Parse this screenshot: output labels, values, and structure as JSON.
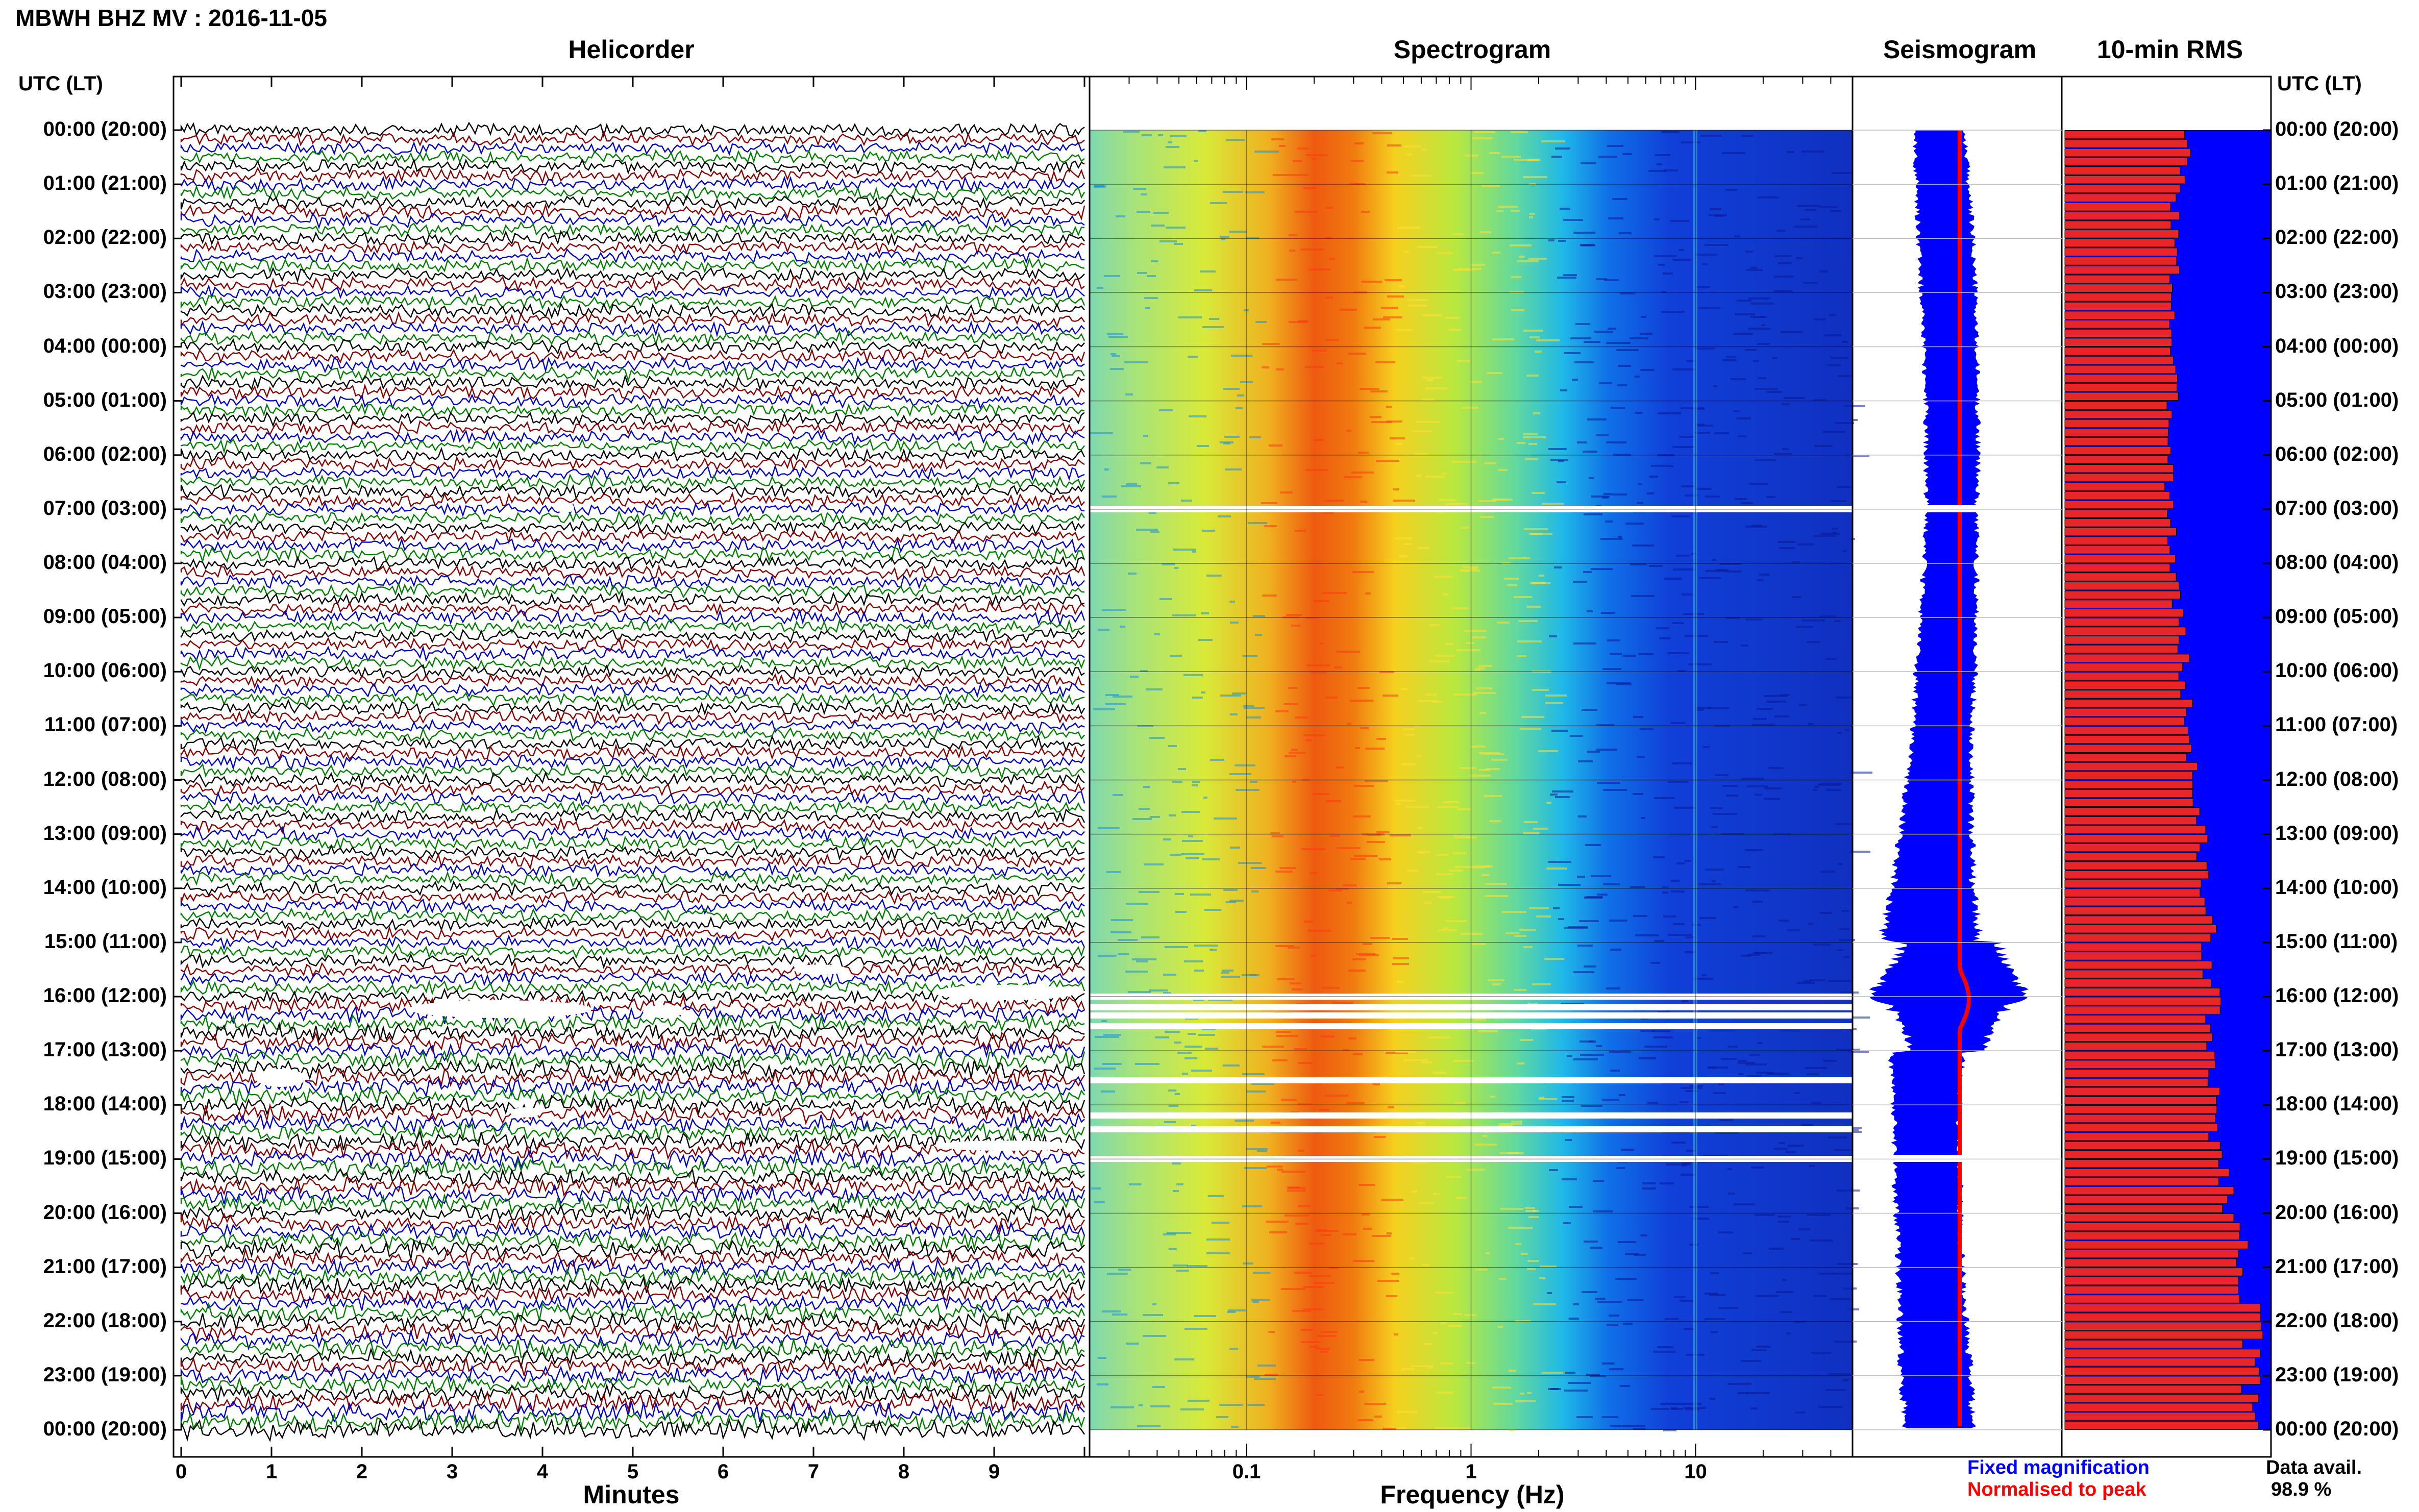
{
  "title": "MBWH BHZ MV : 2016-11-05",
  "panels": {
    "helicorder": "Helicorder",
    "spectrogram": "Spectrogram",
    "seismogram": "Seismogram",
    "rms": "10-min RMS"
  },
  "time_header_left": "UTC (LT)",
  "time_header_right": "UTC (LT)",
  "time_labels": [
    "00:00 (20:00)",
    "01:00 (21:00)",
    "02:00 (22:00)",
    "03:00 (23:00)",
    "04:00 (00:00)",
    "05:00 (01:00)",
    "06:00 (02:00)",
    "07:00 (03:00)",
    "08:00 (04:00)",
    "09:00 (05:00)",
    "10:00 (06:00)",
    "11:00 (07:00)",
    "12:00 (08:00)",
    "13:00 (09:00)",
    "14:00 (10:00)",
    "15:00 (11:00)",
    "16:00 (12:00)",
    "17:00 (13:00)",
    "18:00 (14:00)",
    "19:00 (15:00)",
    "20:00 (16:00)",
    "21:00 (17:00)",
    "22:00 (18:00)",
    "23:00 (19:00)",
    "00:00 (20:00)"
  ],
  "helicorder_xaxis": {
    "label": "Minutes",
    "ticks": [
      "0",
      "1",
      "2",
      "3",
      "4",
      "5",
      "6",
      "7",
      "8",
      "9"
    ]
  },
  "spectrogram_xaxis": {
    "label": "Frequency (Hz)",
    "ticks": [
      "0.1",
      "1",
      "10"
    ],
    "scale": "log"
  },
  "legend": {
    "blue": "Fixed magnification",
    "red": "Normalised to peak"
  },
  "data_avail": {
    "label": "Data avail.",
    "value": "98.9 %"
  },
  "colors": {
    "trace_cycle": [
      "#000000",
      "#8b0000",
      "#0000cd",
      "#008000"
    ],
    "seismogram_fixed": "#0000ff",
    "seismogram_normalised": "#ff0000",
    "rms_background": "#0000ff",
    "rms_bar": "#e8262a"
  },
  "chart_data": [
    {
      "type": "line",
      "name": "helicorder",
      "xlabel": "Minutes",
      "xlim": [
        0,
        10
      ],
      "rows_per_hour": 6,
      "hours": 24,
      "gaps_utc_hours": [
        7.0,
        16.0,
        16.3,
        17.6,
        18.4,
        18.9
      ],
      "trace_color_cycle": [
        "black",
        "darkred",
        "blue",
        "green"
      ]
    },
    {
      "type": "heatmap",
      "name": "spectrogram",
      "xlabel": "Frequency (Hz)",
      "xscale": "log",
      "xlim": [
        0.02,
        50
      ],
      "peak_band_hz": [
        0.2,
        0.4
      ],
      "colormap": "jet",
      "gaps_utc_hours": [
        7.0,
        16.0,
        16.2,
        16.35,
        16.55,
        17.55,
        18.2,
        18.45,
        19.0
      ]
    },
    {
      "type": "area",
      "name": "seismogram envelope (fixed magnification)",
      "hours": [
        0,
        1,
        2,
        3,
        4,
        5,
        6,
        7,
        8,
        9,
        10,
        11,
        12,
        13,
        14,
        15,
        15.5,
        16,
        16.2,
        16.5,
        17,
        17.5,
        18,
        18.5,
        19,
        20,
        21,
        22,
        23,
        24
      ],
      "half_width": [
        0.26,
        0.27,
        0.28,
        0.28,
        0.27,
        0.27,
        0.27,
        0.26,
        0.27,
        0.29,
        0.3,
        0.31,
        0.33,
        0.37,
        0.42,
        0.5,
        0.6,
        0.82,
        0.6,
        0.46,
        0.38,
        0.35,
        0.34,
        0.33,
        0.34,
        0.33,
        0.33,
        0.34,
        0.36,
        0.34
      ]
    },
    {
      "type": "bar",
      "name": "10-min RMS",
      "orientation": "horizontal",
      "hourly_values": [
        0.6,
        0.55,
        0.53,
        0.53,
        0.52,
        0.52,
        0.52,
        0.51,
        0.53,
        0.56,
        0.58,
        0.6,
        0.63,
        0.66,
        0.68,
        0.7,
        0.72,
        0.7,
        0.72,
        0.76,
        0.82,
        0.88,
        0.91,
        0.9,
        0.96,
        0.93
      ],
      "xlim": [
        0,
        1
      ]
    }
  ]
}
